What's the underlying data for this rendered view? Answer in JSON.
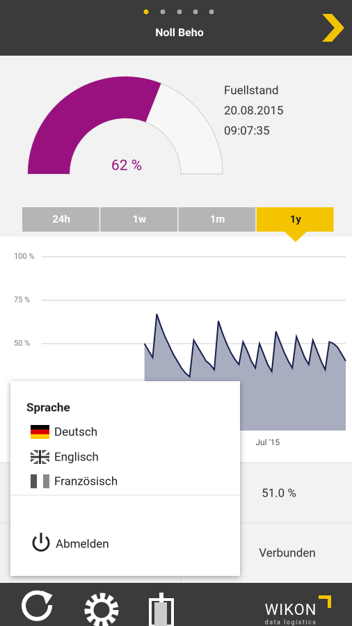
{
  "header": {
    "title": "Noll Beho"
  },
  "gauge": {
    "value": 62,
    "label": "62 %"
  },
  "reading": {
    "label": "Fuellstand",
    "date": "20.08.2015",
    "time": "09:07:35"
  },
  "tabs": [
    "24h",
    "1w",
    "1m",
    "1y"
  ],
  "selected_tab": 3,
  "chart_data": {
    "type": "area",
    "color": "#a9adc0",
    "line_color": "#1a1f4d",
    "values": [
      50,
      46,
      42,
      67,
      60,
      54,
      49,
      44,
      40,
      36,
      33,
      31,
      52,
      48,
      44,
      40,
      38,
      35,
      63,
      56,
      50,
      45,
      41,
      38,
      51,
      46,
      40,
      36,
      50,
      44,
      38,
      34,
      57,
      51,
      45,
      40,
      36,
      54,
      48,
      42,
      38,
      52,
      46,
      40,
      35,
      51,
      50,
      48,
      44,
      40
    ],
    "xlim": [
      -25,
      49
    ],
    "xticks": [
      {
        "value": 30,
        "label": "Jul '15"
      }
    ],
    "ylim": [
      0,
      100
    ],
    "yticks": [
      {
        "value": 100,
        "label": "100 %"
      },
      {
        "value": 75,
        "label": "75 %"
      },
      {
        "value": 50,
        "label": "50 %"
      }
    ],
    "grid": true
  },
  "status": {
    "level": "51.0 %",
    "connection": "Verbunden"
  },
  "menu": {
    "title": "Sprache",
    "languages": [
      "Deutsch",
      "Englisch",
      "Französisch"
    ],
    "logout": "Abmelden"
  },
  "footer": {
    "brand": "WIKON",
    "tagline": "data logistics"
  }
}
